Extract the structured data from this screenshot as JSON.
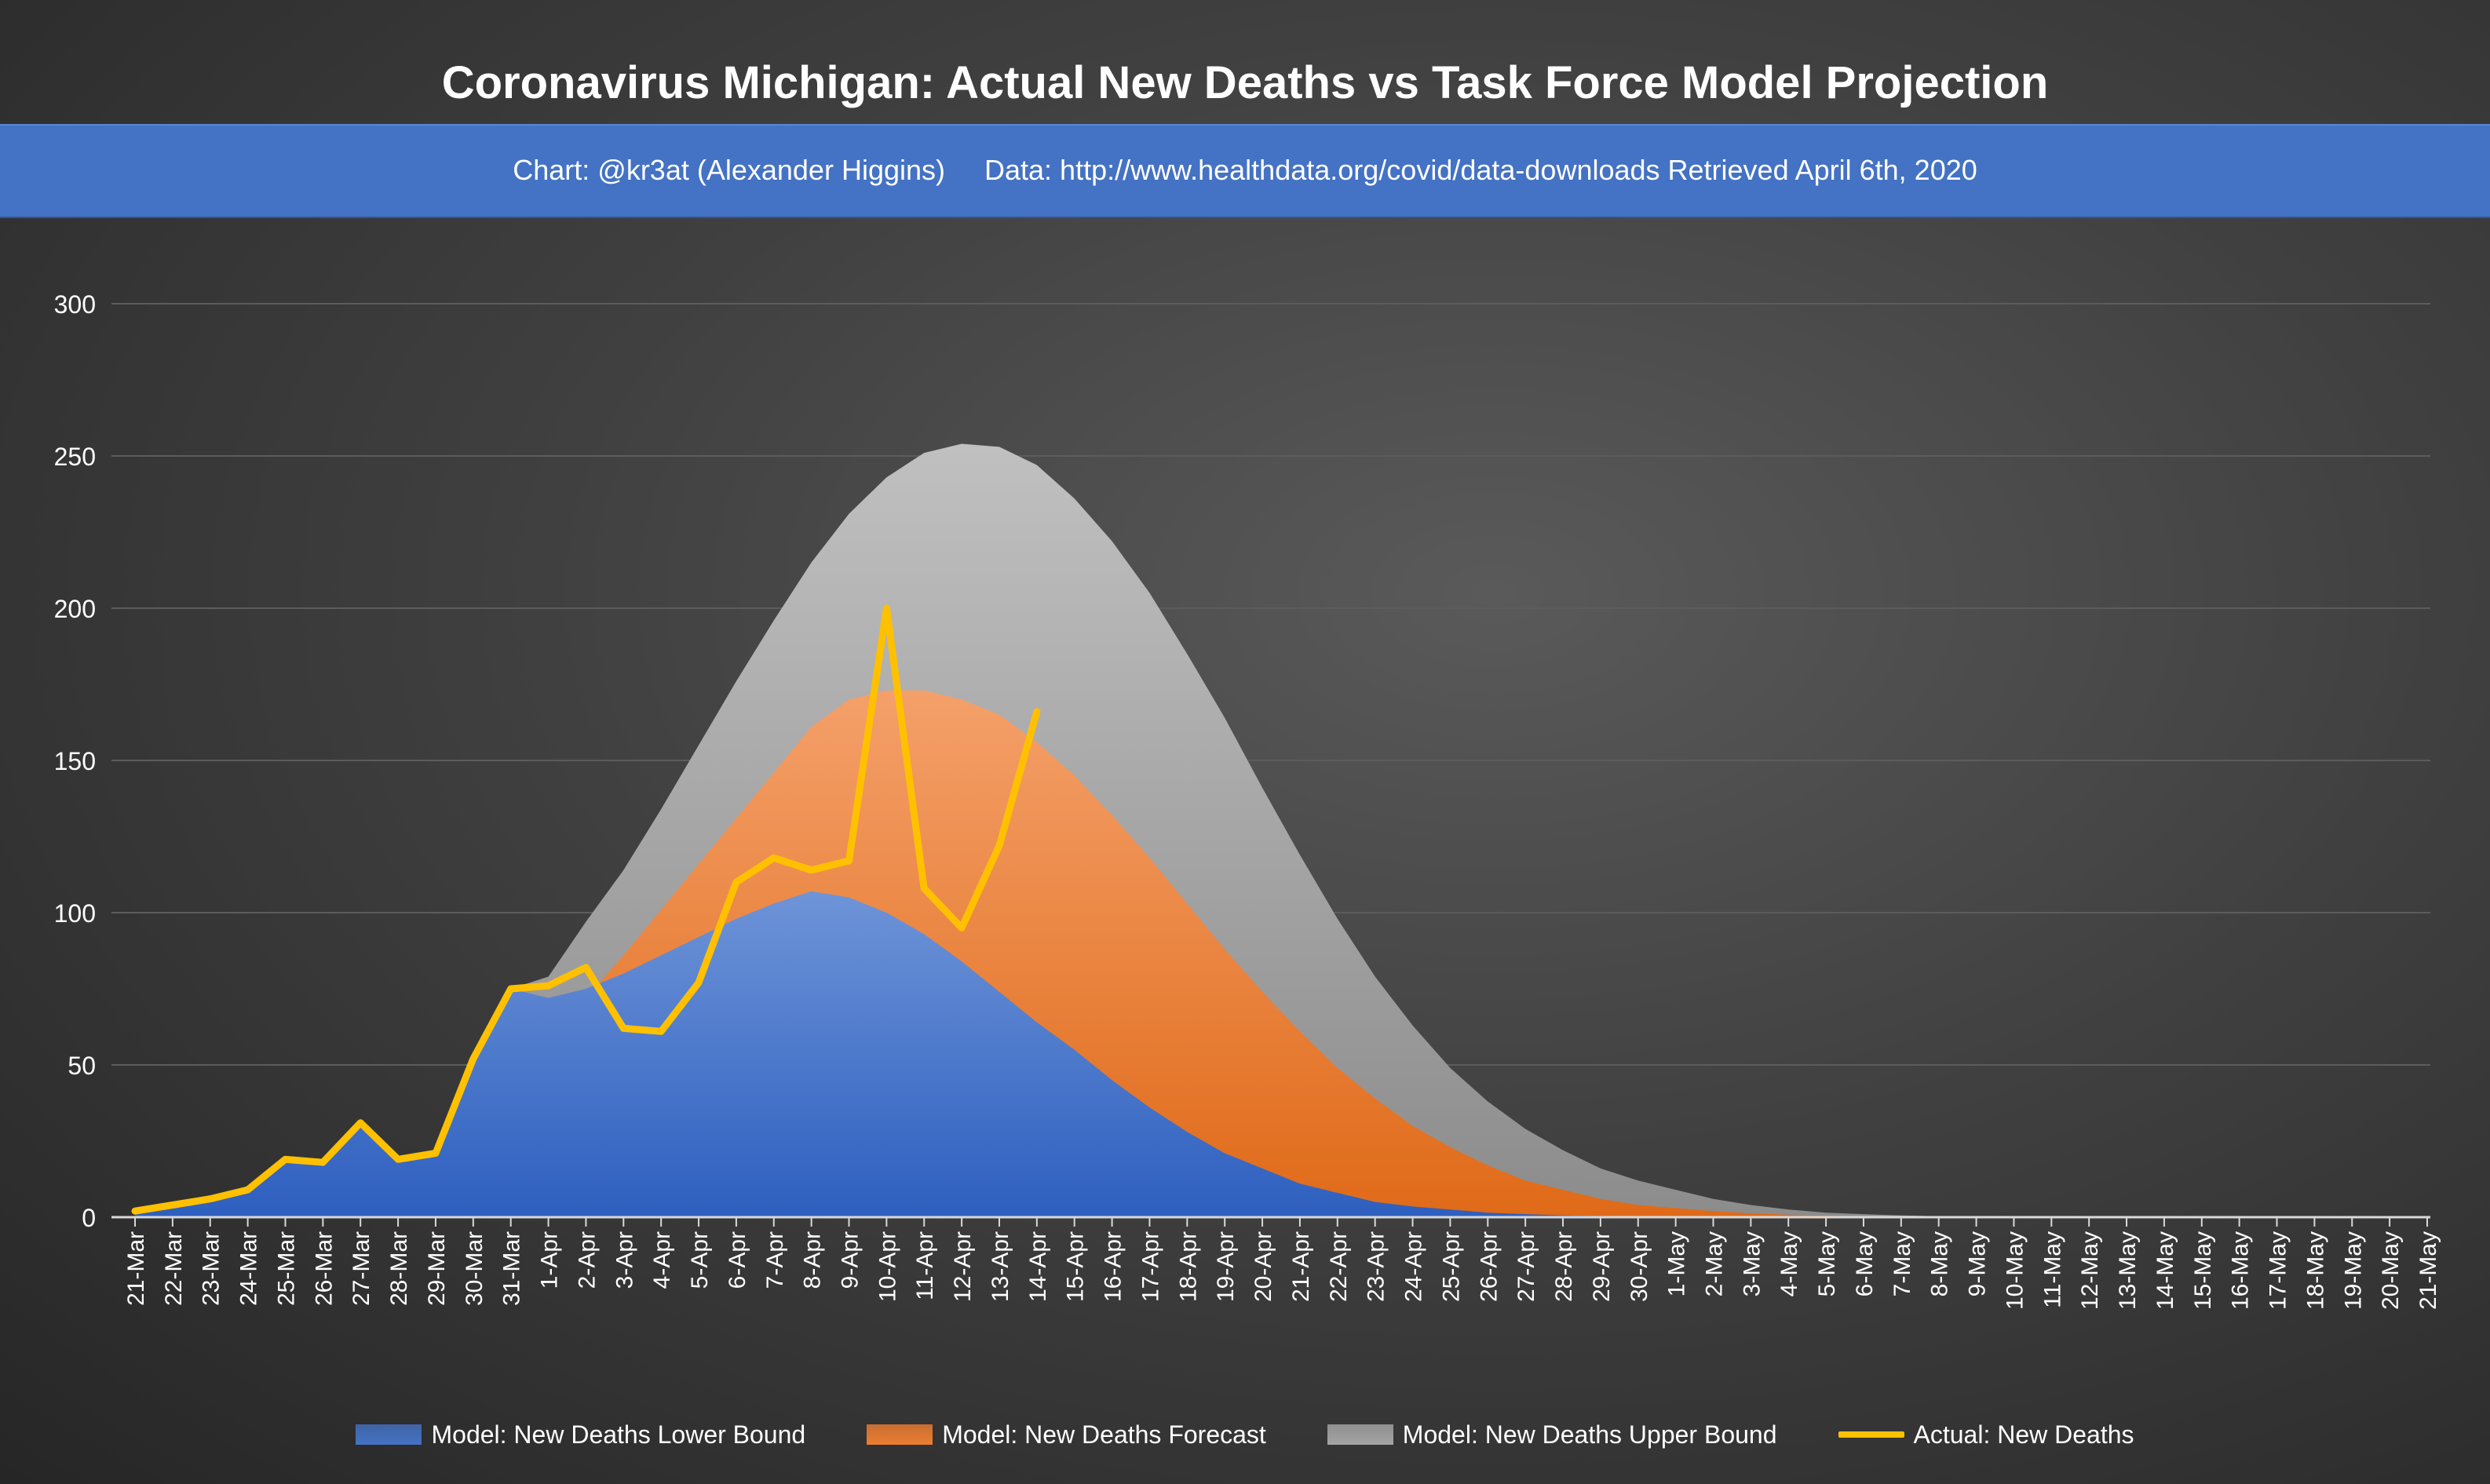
{
  "title": "Coronavirus Michigan: Actual New Deaths vs Task Force Model Projection",
  "subtitle": "Chart: @kr3at (Alexander Higgins)     Data: http://www.healthdata.org/covid/data-downloads Retrieved April 6th, 2020",
  "colors": {
    "lower": "#4472c4",
    "forecast": "#ed7d31",
    "upper": "#a5a5a5",
    "actual": "#ffc000"
  },
  "legend_entries": [
    {
      "label": "Model: New Deaths Lower Bound",
      "kind": "area",
      "color": "#4472c4"
    },
    {
      "label": "Model: New Deaths Forecast",
      "kind": "area",
      "color": "#ed7d31"
    },
    {
      "label": "Model: New Deaths Upper Bound",
      "kind": "area",
      "color": "#a5a5a5"
    },
    {
      "label": "Actual: New Deaths",
      "kind": "line",
      "color": "#ffc000"
    }
  ],
  "chart_data": {
    "type": "area",
    "title": "Coronavirus Michigan: Actual New Deaths vs Task Force Model Projection",
    "subtitle": "Chart: @kr3at (Alexander Higgins)     Data: http://www.healthdata.org/covid/data-downloads Retrieved April 6th, 2020",
    "xlabel": "",
    "ylabel": "",
    "ylim": [
      0,
      300
    ],
    "yticks": [
      0,
      50,
      100,
      150,
      200,
      250,
      300
    ],
    "grid": true,
    "legend_position": "bottom",
    "categories": [
      "21-Mar",
      "22-Mar",
      "23-Mar",
      "24-Mar",
      "25-Mar",
      "26-Mar",
      "27-Mar",
      "28-Mar",
      "29-Mar",
      "30-Mar",
      "31-Mar",
      "1-Apr",
      "2-Apr",
      "3-Apr",
      "4-Apr",
      "5-Apr",
      "6-Apr",
      "7-Apr",
      "8-Apr",
      "9-Apr",
      "10-Apr",
      "11-Apr",
      "12-Apr",
      "13-Apr",
      "14-Apr",
      "15-Apr",
      "16-Apr",
      "17-Apr",
      "18-Apr",
      "19-Apr",
      "20-Apr",
      "21-Apr",
      "22-Apr",
      "23-Apr",
      "24-Apr",
      "25-Apr",
      "26-Apr",
      "27-Apr",
      "28-Apr",
      "29-Apr",
      "30-Apr",
      "1-May",
      "2-May",
      "3-May",
      "4-May",
      "5-May",
      "6-May",
      "7-May",
      "8-May",
      "9-May",
      "10-May",
      "11-May",
      "12-May",
      "13-May",
      "14-May",
      "15-May",
      "16-May",
      "17-May",
      "18-May",
      "19-May",
      "20-May",
      "21-May"
    ],
    "series": [
      {
        "name": "Model: New Deaths Upper Bound",
        "kind": "area",
        "values": [
          2,
          4,
          6,
          9,
          19,
          18,
          31,
          19,
          21,
          52,
          75,
          79,
          97,
          114,
          134,
          155,
          176,
          196,
          215,
          231,
          243,
          251,
          254,
          253,
          247,
          236,
          222,
          205,
          185,
          164,
          141,
          119,
          98,
          79,
          63,
          49,
          38,
          29,
          22,
          16,
          12,
          9,
          6,
          4,
          2.5,
          1.5,
          1,
          0.6,
          0.3,
          null,
          null,
          null,
          null,
          null,
          null,
          null,
          null,
          null,
          null,
          null,
          null,
          null
        ]
      },
      {
        "name": "Model: New Deaths Forecast",
        "kind": "area",
        "values": [
          2,
          4,
          6,
          9,
          19,
          18,
          31,
          19,
          21,
          52,
          75,
          63,
          72,
          86,
          101,
          116,
          131,
          146,
          161,
          170,
          173,
          173,
          170,
          165,
          156,
          145,
          132,
          118,
          103,
          88,
          74,
          61,
          49,
          39,
          30,
          23,
          17,
          12,
          9,
          6,
          4,
          3,
          2,
          1.3,
          0.8,
          0.5,
          0.3,
          0.2,
          0.1,
          null,
          null,
          null,
          null,
          null,
          null,
          null,
          null,
          null,
          null,
          null,
          null,
          null
        ]
      },
      {
        "name": "Model: New Deaths Lower Bound",
        "kind": "area",
        "values": [
          2,
          4,
          6,
          9,
          19,
          18,
          31,
          19,
          21,
          52,
          75,
          72,
          75,
          80,
          86,
          92,
          98,
          103,
          107,
          105,
          100,
          93,
          84,
          74,
          64,
          55,
          45,
          36,
          28,
          21,
          16,
          11,
          8,
          5,
          3.5,
          2.5,
          1.5,
          1,
          0.6,
          0.4,
          0.3,
          0.2,
          0.1,
          0.1,
          null,
          null,
          null,
          null,
          null,
          null,
          null,
          null,
          null,
          null,
          null,
          null,
          null,
          null,
          null,
          null,
          null,
          null
        ]
      },
      {
        "name": "Actual: New Deaths",
        "kind": "line",
        "values": [
          2,
          4,
          6,
          9,
          19,
          18,
          31,
          19,
          21,
          52,
          75,
          76,
          82,
          62,
          61,
          77,
          110,
          118,
          114,
          117,
          200,
          108,
          95,
          122,
          166,
          null,
          null,
          null,
          null,
          null,
          null,
          null,
          null,
          null,
          null,
          null,
          null,
          null,
          null,
          null,
          null,
          null,
          null,
          null,
          null,
          null,
          null,
          null,
          null,
          null,
          null,
          null,
          null,
          null,
          null,
          null,
          null,
          null,
          null,
          null,
          null,
          null
        ]
      }
    ]
  }
}
